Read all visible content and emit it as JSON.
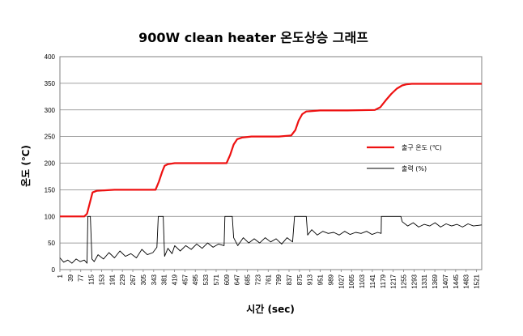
{
  "chart_data": {
    "type": "line",
    "title": "900W clean heater 온도상승 그래프",
    "xlabel": "시간 (sec)",
    "ylabel": "온도 (℃)",
    "ylim": [
      0,
      400
    ],
    "y_ticks": [
      0,
      50,
      100,
      150,
      200,
      250,
      300,
      350,
      400
    ],
    "x_range": [
      1,
      1540
    ],
    "x_ticks": [
      1,
      39,
      77,
      115,
      153,
      191,
      229,
      267,
      305,
      343,
      381,
      419,
      457,
      495,
      533,
      571,
      609,
      647,
      685,
      723,
      761,
      799,
      837,
      875,
      913,
      951,
      989,
      1027,
      1065,
      1103,
      1141,
      1179,
      1217,
      1255,
      1293,
      1331,
      1369,
      1407,
      1445,
      1483,
      1521
    ],
    "grid": true,
    "legend_position": "right",
    "series": [
      {
        "name": "출구 온도 (℃)",
        "color": "#ee1111",
        "x": [
          1,
          77,
          90,
          100,
          110,
          120,
          135,
          200,
          300,
          350,
          362,
          375,
          383,
          395,
          420,
          480,
          560,
          609,
          622,
          635,
          648,
          665,
          700,
          800,
          845,
          860,
          872,
          885,
          900,
          950,
          1050,
          1150,
          1170,
          1190,
          1210,
          1230,
          1250,
          1265,
          1285,
          1320,
          1400,
          1540
        ],
        "values": [
          100,
          100,
          100,
          105,
          125,
          145,
          148,
          150,
          150,
          150,
          165,
          185,
          195,
          198,
          200,
          200,
          200,
          200,
          215,
          235,
          245,
          248,
          250,
          250,
          252,
          262,
          280,
          292,
          297,
          299,
          299,
          300,
          305,
          318,
          330,
          340,
          346,
          348,
          349,
          349,
          349,
          349
        ]
      },
      {
        "name": "출력 (%)",
        "color": "#000000",
        "x": [
          1,
          15,
          30,
          45,
          60,
          75,
          90,
          100,
          103,
          112,
          118,
          126,
          140,
          160,
          180,
          200,
          220,
          240,
          260,
          280,
          300,
          320,
          340,
          355,
          360,
          378,
          383,
          395,
          410,
          420,
          440,
          460,
          480,
          500,
          520,
          540,
          560,
          580,
          600,
          603,
          630,
          635,
          650,
          670,
          690,
          710,
          730,
          750,
          770,
          790,
          810,
          830,
          850,
          857,
          900,
          905,
          920,
          940,
          960,
          980,
          1000,
          1020,
          1040,
          1060,
          1080,
          1100,
          1120,
          1140,
          1160,
          1173,
          1174,
          1245,
          1250,
          1270,
          1290,
          1310,
          1330,
          1350,
          1370,
          1390,
          1410,
          1430,
          1450,
          1470,
          1490,
          1510,
          1540
        ],
        "values": [
          22,
          14,
          18,
          12,
          20,
          15,
          18,
          12,
          100,
          100,
          20,
          15,
          28,
          20,
          32,
          22,
          35,
          25,
          30,
          22,
          38,
          28,
          32,
          42,
          100,
          100,
          25,
          40,
          30,
          45,
          35,
          45,
          38,
          48,
          40,
          50,
          42,
          48,
          45,
          100,
          100,
          60,
          45,
          60,
          50,
          58,
          50,
          60,
          52,
          58,
          48,
          60,
          52,
          100,
          100,
          65,
          75,
          65,
          72,
          68,
          70,
          65,
          72,
          66,
          70,
          68,
          72,
          66,
          70,
          68,
          100,
          100,
          90,
          82,
          88,
          80,
          85,
          82,
          88,
          80,
          86,
          82,
          85,
          80,
          86,
          82,
          84
        ]
      }
    ]
  }
}
